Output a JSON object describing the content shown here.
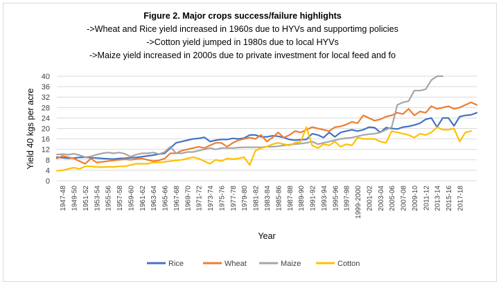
{
  "chart_data": {
    "type": "line",
    "title": "Figure 2. Major crops success/failure highlights",
    "subtitle": [
      "->Wheat and Rice yield increased in 1960s due to HYVs and supportimg policies",
      "->Cotton yield jumped in 1980s  due to local HYVs",
      "->Maize yield increased in 2000s due to private investment for local feed and fo"
    ],
    "xlabel": "Year",
    "ylabel": "Yield 40 kgs per acre",
    "ylim": [
      0,
      40
    ],
    "yticks": [
      0,
      4,
      8,
      12,
      16,
      20,
      24,
      28,
      32,
      36,
      40
    ],
    "grid": true,
    "legend_position": "bottom",
    "x_tick_labels": [
      "1947-48",
      "1949-50",
      "1951-52",
      "1953-54",
      "1955-56",
      "1957-58",
      "1959-60",
      "1961-62",
      "1963-64",
      "1965-66",
      "1967-68",
      "1969-70",
      "1971-72",
      "1973-74",
      "1975-76",
      "1977-78",
      "1979-80",
      "1981-82",
      "1983-84",
      "1985-86",
      "1987-88",
      "1989-90",
      "1991-92",
      "1993-94",
      "1995-96",
      "1997-98",
      "1999-2000",
      "2001-02",
      "2003-04",
      "2005-06",
      "2007-08",
      "2009-10",
      "2011-12",
      "2013-14",
      "2015-16",
      "2017-18"
    ],
    "series": [
      {
        "name": "Rice",
        "color": "#4472C4",
        "values": [
          9.0,
          8.8,
          8.6,
          8.7,
          8.9,
          9.0,
          8.8,
          8.7,
          8.5,
          8.4,
          8.3,
          8.5,
          8.6,
          8.8,
          8.9,
          9.2,
          9.5,
          9.8,
          10.2,
          10.5,
          12.5,
          14.5,
          15.0,
          15.5,
          16.0,
          16.2,
          16.6,
          15.0,
          15.5,
          15.8,
          15.8,
          16.2,
          16.0,
          16.3,
          17.5,
          17.5,
          16.8,
          16.8,
          17.2,
          17.0,
          16.5,
          15.8,
          15.5,
          15.7,
          15.8,
          18.0,
          17.5,
          16.5,
          18.5,
          16.8,
          18.5,
          19.0,
          19.5,
          19.0,
          19.5,
          20.5,
          20.3,
          18.5,
          20.3,
          20.0,
          19.8,
          20.5,
          20.8,
          21.3,
          22.0,
          23.5,
          24.0,
          20.5,
          24.0,
          24.0,
          21.0,
          24.5,
          25.0,
          25.2,
          26.0
        ]
      },
      {
        "name": "Wheat",
        "color": "#ED7D31",
        "values": [
          8.5,
          9.5,
          9.0,
          8.5,
          7.5,
          6.5,
          8.5,
          7.0,
          7.2,
          7.5,
          7.8,
          8.0,
          8.2,
          8.0,
          8.3,
          8.5,
          8.0,
          7.5,
          7.8,
          8.5,
          10.5,
          10.5,
          11.5,
          12.0,
          12.5,
          13.0,
          12.5,
          13.5,
          14.5,
          14.5,
          13.0,
          14.5,
          15.5,
          16.0,
          16.5,
          16.0,
          17.5,
          15.0,
          16.5,
          18.5,
          16.5,
          17.5,
          19.0,
          18.5,
          19.5,
          20.5,
          20.0,
          19.5,
          19.0,
          20.5,
          20.8,
          21.5,
          22.5,
          22.0,
          25.0,
          24.0,
          23.0,
          23.5,
          24.5,
          25.0,
          26.0,
          25.5,
          27.5,
          25.0,
          26.5,
          26.0,
          28.5,
          27.5,
          28.0,
          28.5,
          27.5,
          28.0,
          29.0,
          30.0,
          29.0
        ]
      },
      {
        "name": "Maize",
        "color": "#A5A5A5",
        "values": [
          10.0,
          10.2,
          10.0,
          10.3,
          9.8,
          9.0,
          9.3,
          10.0,
          10.5,
          10.8,
          10.5,
          10.8,
          10.3,
          9.2,
          10.0,
          10.5,
          10.5,
          10.8,
          10.2,
          11.0,
          13.0,
          10.5,
          10.5,
          11.0,
          11.0,
          11.5,
          12.0,
          12.5,
          12.0,
          12.5,
          12.5,
          12.5,
          12.7,
          12.8,
          12.8,
          12.8,
          12.8,
          13.0,
          13.0,
          13.2,
          13.5,
          13.8,
          14.0,
          14.2,
          14.5,
          15.0,
          14.0,
          14.5,
          15.0,
          15.5,
          16.0,
          16.3,
          16.5,
          17.0,
          17.5,
          17.8,
          18.0,
          18.5,
          19.5,
          20.5,
          29.0,
          30.0,
          30.5,
          34.5,
          34.5,
          35.0,
          38.5,
          40.0,
          40.0
        ]
      },
      {
        "name": "Cotton",
        "color": "#FFC000",
        "values": [
          3.8,
          4.0,
          4.5,
          5.0,
          4.5,
          5.5,
          5.5,
          5.3,
          5.2,
          5.3,
          5.3,
          5.5,
          5.5,
          6.0,
          6.5,
          6.5,
          6.5,
          7.0,
          7.0,
          7.2,
          7.5,
          7.8,
          8.0,
          8.5,
          9.0,
          8.5,
          7.5,
          6.5,
          8.0,
          7.5,
          8.5,
          8.3,
          8.5,
          9.0,
          6.0,
          11.5,
          12.5,
          13.0,
          14.0,
          14.5,
          14.0,
          13.5,
          14.5,
          15.0,
          20.5,
          13.5,
          12.5,
          14.0,
          13.5,
          15.0,
          13.0,
          14.0,
          13.5,
          16.5,
          16.0,
          16.0,
          16.0,
          15.0,
          14.5,
          19.0,
          18.5,
          18.0,
          17.5,
          16.5,
          18.0,
          17.5,
          18.5,
          20.5,
          19.5,
          19.5,
          20.0,
          15.0,
          18.5,
          19.0
        ]
      }
    ]
  }
}
